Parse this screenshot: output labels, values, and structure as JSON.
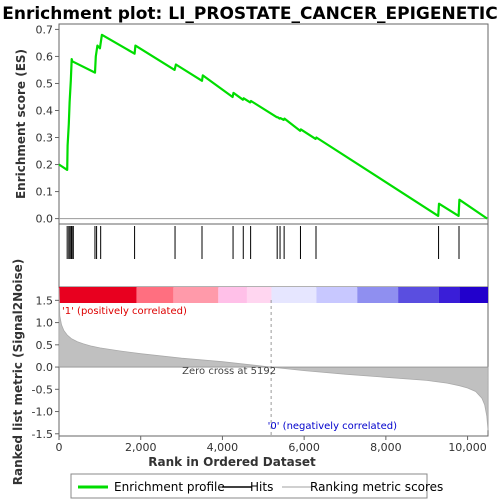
{
  "chart_data": {
    "type": "line",
    "title": "Enrichment plot: LI_PROSTATE_CANCER_EPIGENETIC",
    "xlabel": "Rank in Ordered Dataset",
    "xlim": [
      0,
      10500
    ],
    "x_ticks": [
      0,
      2000,
      4000,
      6000,
      8000,
      10000
    ],
    "x_tick_labels": [
      "0",
      "2,000",
      "4,000",
      "6,000",
      "8,000",
      "10,000"
    ],
    "grid": false,
    "legend_position": "bottom",
    "colors": {
      "enrichment": "#00dd00",
      "hits": "#000000",
      "metric_fill": "#c0c0c0",
      "positive_label": "#dd0000",
      "negative_label": "#0000cc"
    },
    "es_panel": {
      "ylabel": "Enrichment score (ES)",
      "ylim": [
        -0.02,
        0.72
      ],
      "y_ticks": [
        0.0,
        0.1,
        0.2,
        0.3,
        0.4,
        0.5,
        0.6,
        0.7
      ],
      "y_tick_labels": [
        "0.0",
        "0.1",
        "0.2",
        "0.3",
        "0.4",
        "0.5",
        "0.6",
        "0.7"
      ],
      "series": [
        {
          "name": "Enrichment profile",
          "x": [
            0,
            200,
            210,
            240,
            260,
            290,
            310,
            330,
            350,
            880,
            900,
            940,
            1000,
            1050,
            1850,
            1870,
            2830,
            2860,
            3500,
            3520,
            4250,
            4270,
            4500,
            4520,
            4680,
            4700,
            5330,
            5350,
            5400,
            5420,
            5500,
            5520,
            5900,
            5920,
            6280,
            6300,
            9280,
            9300,
            9780,
            9800,
            10480
          ],
          "y": [
            0.2,
            0.18,
            0.27,
            0.35,
            0.43,
            0.51,
            0.59,
            0.58,
            0.58,
            0.54,
            0.6,
            0.64,
            0.63,
            0.68,
            0.61,
            0.64,
            0.55,
            0.57,
            0.51,
            0.53,
            0.45,
            0.465,
            0.44,
            0.445,
            0.43,
            0.435,
            0.375,
            0.375,
            0.37,
            0.372,
            0.365,
            0.37,
            0.325,
            0.33,
            0.295,
            0.3,
            0.01,
            0.055,
            0.01,
            0.07,
            0.0
          ]
        }
      ]
    },
    "hits": [
      200,
      240,
      270,
      300,
      320,
      350,
      880,
      920,
      1020,
      1850,
      2840,
      3500,
      4260,
      4510,
      4690,
      5340,
      5410,
      5510,
      5910,
      6290,
      9290,
      9790
    ],
    "metric_panel": {
      "ylabel": "Ranked list metric (Signal2Noise)",
      "ylim": [
        -1.55,
        1.8
      ],
      "y_ticks": [
        -1.5,
        -1.0,
        -0.5,
        0.0,
        0.5,
        1.0,
        1.5
      ],
      "y_tick_labels": [
        "-1.5",
        "-1.0",
        "-0.5",
        "0.0",
        "0.5",
        "1.0",
        "1.5"
      ],
      "x": [
        0,
        20,
        60,
        120,
        200,
        300,
        450,
        600,
        800,
        1000,
        1500,
        2000,
        3000,
        4000,
        5192,
        6000,
        7000,
        8000,
        9000,
        9500,
        9800,
        10000,
        10200,
        10350,
        10420,
        10470,
        10500
      ],
      "y": [
        1.78,
        1.15,
        0.95,
        0.82,
        0.72,
        0.64,
        0.57,
        0.52,
        0.47,
        0.43,
        0.36,
        0.3,
        0.2,
        0.12,
        0.0,
        -0.08,
        -0.16,
        -0.23,
        -0.3,
        -0.36,
        -0.42,
        -0.47,
        -0.55,
        -0.7,
        -0.85,
        -1.1,
        -1.42
      ],
      "zero_cross_label": "Zero cross at 5192",
      "zero_cross": 5192,
      "positive_label": "'1' (positively correlated)",
      "negative_label": "'0' (negatively correlated)"
    },
    "heatmap_segments": [
      {
        "from": 0,
        "to": 1900,
        "color": "#e8001f"
      },
      {
        "from": 1900,
        "to": 2800,
        "color": "#ff6f80"
      },
      {
        "from": 2800,
        "to": 3900,
        "color": "#ff9aaa"
      },
      {
        "from": 3900,
        "to": 4600,
        "color": "#ffc0e8"
      },
      {
        "from": 4600,
        "to": 5200,
        "color": "#ffd6f0"
      },
      {
        "from": 5200,
        "to": 6300,
        "color": "#e6e6ff"
      },
      {
        "from": 6300,
        "to": 7300,
        "color": "#c8c8ff"
      },
      {
        "from": 7300,
        "to": 8300,
        "color": "#8f8ff0"
      },
      {
        "from": 8300,
        "to": 9300,
        "color": "#5a4ee0"
      },
      {
        "from": 9300,
        "to": 9800,
        "color": "#3a1ed8"
      },
      {
        "from": 9800,
        "to": 10500,
        "color": "#2200cc"
      }
    ],
    "legend": [
      {
        "label": "Enrichment profile",
        "color": "#00dd00",
        "kind": "thick-line"
      },
      {
        "label": "Hits",
        "color": "#000000",
        "kind": "line"
      },
      {
        "label": "Ranking metric scores",
        "color": "#c0c0c0",
        "kind": "line"
      }
    ]
  }
}
